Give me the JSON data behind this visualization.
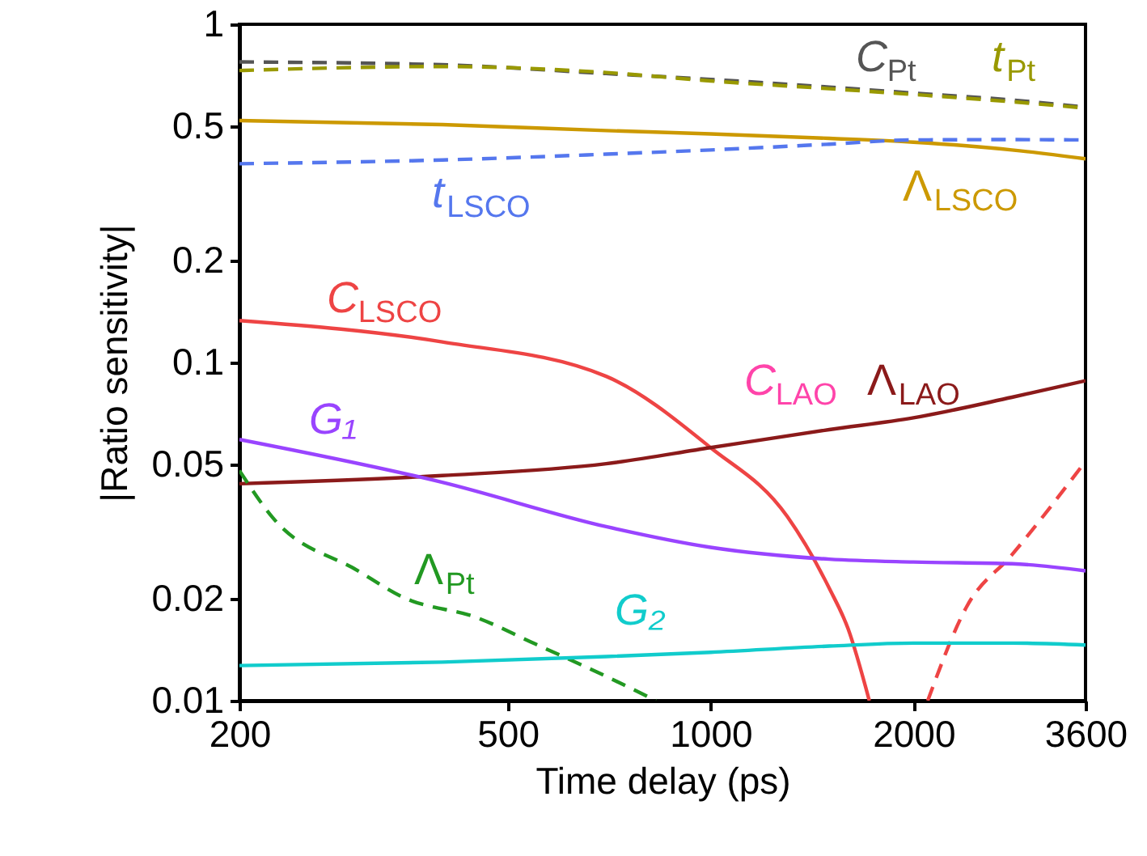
{
  "chart_data": {
    "type": "line",
    "xlabel": "Time delay (ps)",
    "ylabel": "|Ratio sensitivity|",
    "log": "xy",
    "xlim": [
      200,
      3600
    ],
    "xticks": [
      200,
      500,
      1000,
      2000,
      3600
    ],
    "ylim": [
      0.01,
      1
    ],
    "yticks": [
      0.01,
      0.02,
      0.05,
      0.1,
      0.2,
      0.5,
      1
    ],
    "grid": false,
    "series": [
      {
        "name": "C$_{Pt}$",
        "color": "#555555",
        "line_style": "dashed",
        "x": [
          200,
          400,
          700,
          1000,
          1500,
          2000,
          2800,
          3600
        ],
        "values": [
          0.774,
          0.759,
          0.715,
          0.687,
          0.652,
          0.626,
          0.597,
          0.569
        ]
      },
      {
        "name": "t$_{Pt}$",
        "color": "#999900",
        "line_style": "dashed",
        "x": [
          200,
          400,
          700,
          1000,
          1500,
          2000,
          2800,
          3600
        ],
        "values": [
          0.73,
          0.75,
          0.72,
          0.68,
          0.645,
          0.62,
          0.59,
          0.565
        ]
      },
      {
        "name": "Λ$_{LSCO}$",
        "color": "#cc9900",
        "line_style": "solid",
        "x": [
          200,
          400,
          700,
          1000,
          1500,
          2000,
          2800,
          3600
        ],
        "values": [
          0.519,
          0.505,
          0.485,
          0.474,
          0.46,
          0.448,
          0.425,
          0.4
        ]
      },
      {
        "name": "t$_{LSCO}$",
        "color": "#5577ee",
        "line_style": "dashed",
        "x": [
          200,
          400,
          700,
          1000,
          1500,
          2000,
          2800,
          3600
        ],
        "values": [
          0.387,
          0.397,
          0.413,
          0.425,
          0.442,
          0.455,
          0.456,
          0.455
        ]
      },
      {
        "name": "C$_{LSCO}$",
        "color": "#ee4444",
        "line_style": "solid",
        "x": [
          200,
          400,
          700,
          1000,
          1300,
          1500,
          1600,
          1720
        ],
        "values": [
          0.133,
          0.115,
          0.091,
          0.056,
          0.035,
          0.0215,
          0.0163,
          0.01
        ]
      },
      {
        "color": "#ee4444",
        "line_style": "dashed",
        "x": [
          2100,
          2400,
          2800,
          3600
        ],
        "values": [
          0.01,
          0.019,
          0.027,
          0.051
        ]
      },
      {
        "name": "C$_{LAO}$",
        "color": "#ff44aa"
      },
      {
        "name": "Λ$_{LAO}$",
        "color": "#8b1a1a",
        "line_style": "solid",
        "x": [
          200,
          400,
          700,
          1000,
          1500,
          2000,
          2800,
          3600
        ],
        "values": [
          0.0438,
          0.0463,
          0.0502,
          0.056,
          0.0633,
          0.0686,
          0.0789,
          0.0883
        ]
      },
      {
        "name": "G₁",
        "color": "#9944ff",
        "line_style": "solid",
        "x": [
          200,
          400,
          700,
          1000,
          1500,
          2000,
          2800,
          3600
        ],
        "values": [
          0.0592,
          0.0442,
          0.0327,
          0.0284,
          0.0262,
          0.0257,
          0.0254,
          0.0242
        ]
      },
      {
        "name": "Λ$_{Pt}$",
        "color": "#229922",
        "line_style": "dashed",
        "x": [
          200,
          224,
          300,
          350,
          450,
          550,
          700,
          830
        ],
        "values": [
          0.0479,
          0.0348,
          0.0242,
          0.0202,
          0.0176,
          0.0147,
          0.0118,
          0.01
        ]
      },
      {
        "name": "G₂",
        "color": "#11cccc",
        "line_style": "solid",
        "x": [
          200,
          400,
          700,
          1000,
          1500,
          2000,
          2800,
          3600
        ],
        "values": [
          0.0127,
          0.013,
          0.0135,
          0.0139,
          0.0145,
          0.0148,
          0.0148,
          0.0146
        ]
      }
    ]
  }
}
